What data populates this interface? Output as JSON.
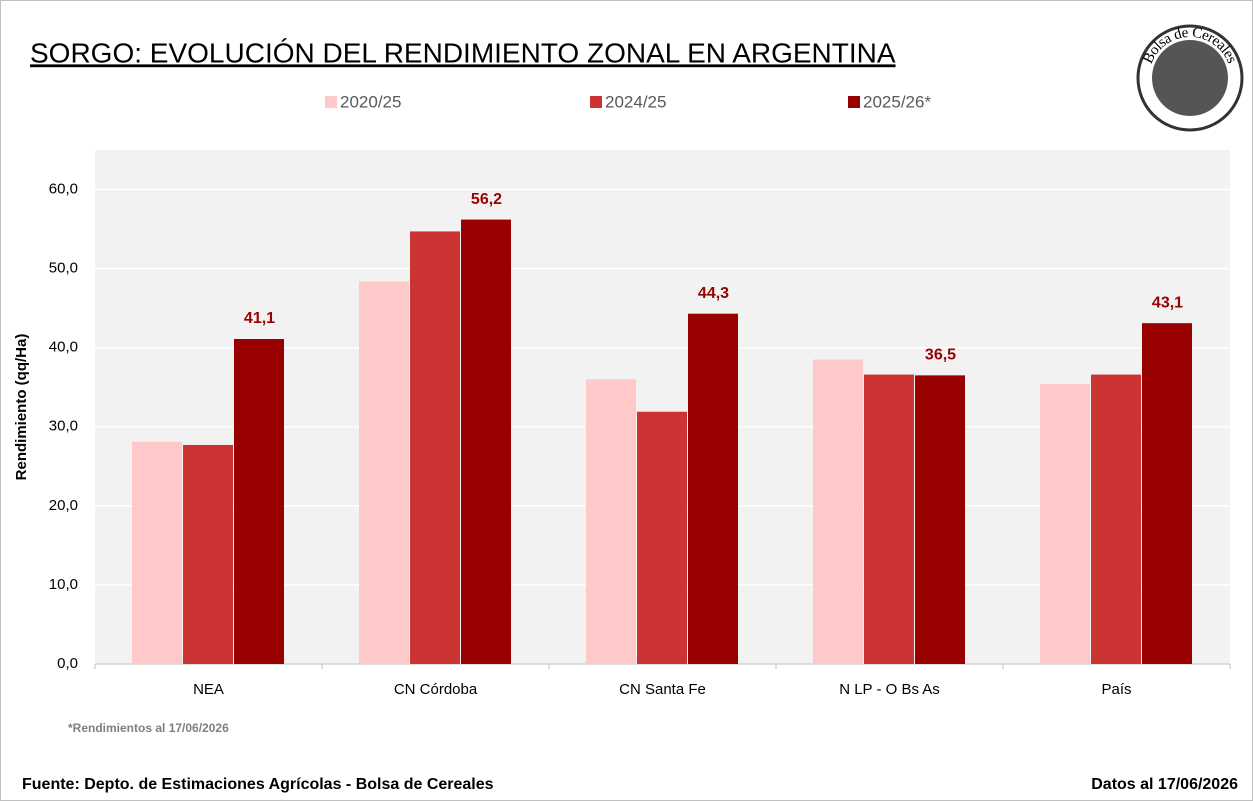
{
  "chart_data": {
    "type": "bar",
    "title": "SORGO: EVOLUCIÓN DEL RENDIMIENTO ZONAL EN ARGENTINA",
    "y_label": "Rendimiento (qq/Ha)",
    "categories": [
      "NEA",
      "CN Córdoba",
      "CN Santa Fe",
      "N LP - O Bs As",
      "País"
    ],
    "series": [
      {
        "name": "2020/25",
        "color": "#ffc9c9",
        "values": [
          28.1,
          48.4,
          36.0,
          38.5,
          35.4
        ]
      },
      {
        "name": "2024/25",
        "color": "#cc3333",
        "values": [
          27.7,
          54.7,
          31.9,
          36.6,
          36.6
        ]
      },
      {
        "name": "2025/26*",
        "color": "#990000",
        "values": [
          41.1,
          56.2,
          44.3,
          36.5,
          43.1
        ],
        "value_labels": [
          "41,1",
          "56,2",
          "44,3",
          "36,5",
          "43,1"
        ]
      }
    ],
    "ylim": [
      0,
      65
    ],
    "yticks": [
      {
        "value": 0,
        "label": "0,0"
      },
      {
        "value": 10,
        "label": "10,0"
      },
      {
        "value": 20,
        "label": "20,0"
      },
      {
        "value": 30,
        "label": "30,0"
      },
      {
        "value": 40,
        "label": "40,0"
      },
      {
        "value": 50,
        "label": "50,0"
      },
      {
        "value": 60,
        "label": "60,0"
      }
    ],
    "grid": true,
    "legend": "top",
    "footnote": "*Rendimientos al 17/06/2026",
    "source": "Fuente: Depto. de Estimaciones Agrícolas - Bolsa de Cereales",
    "date_note": "Datos al 17/06/2026",
    "logo_text": "Bolsa de Cereales"
  }
}
